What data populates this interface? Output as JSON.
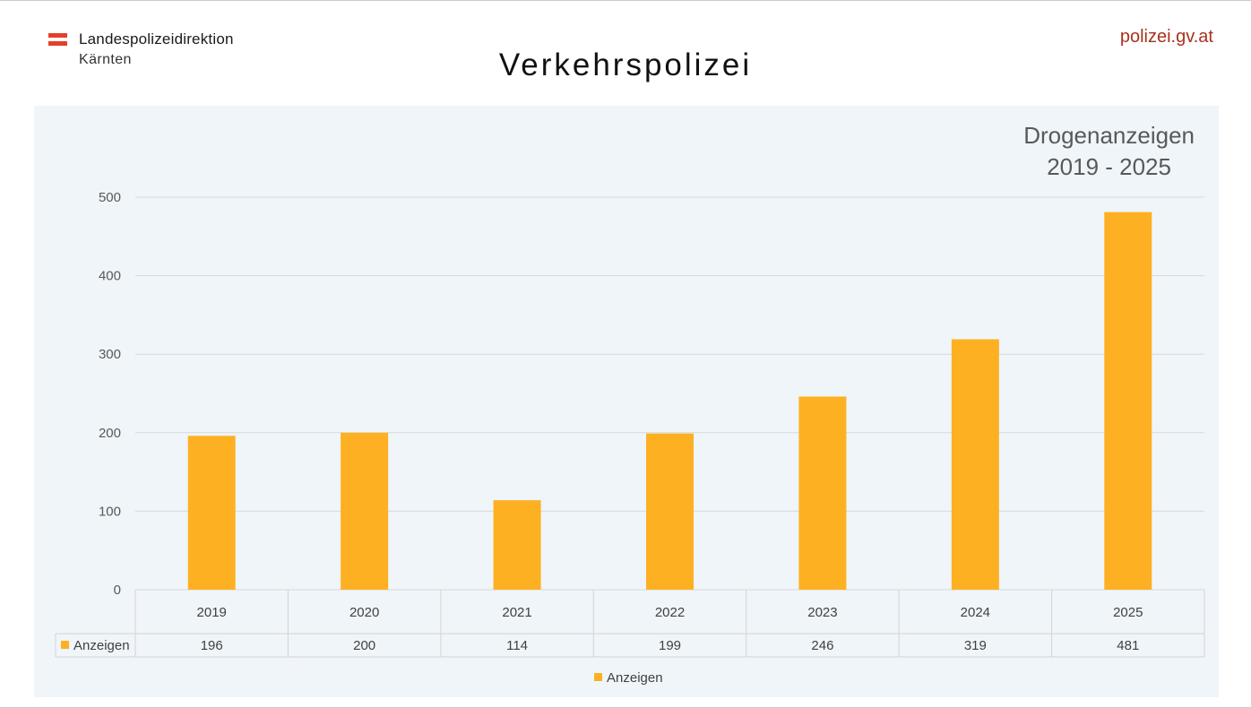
{
  "header": {
    "org_line1": "Landespolizeidirektion",
    "org_line2": "Kärnten",
    "site": "polizei.gv.at",
    "page_title": "Verkehrspolizei"
  },
  "colors": {
    "bar": "#fdb022",
    "panel": "#eff5f9",
    "site_link": "#a8321e",
    "flag_red": "#e2402c"
  },
  "chart_data": {
    "type": "bar",
    "title_line1": "Drogenanzeigen",
    "title_line2": "2019 - 2025",
    "categories": [
      "2019",
      "2020",
      "2021",
      "2022",
      "2023",
      "2024",
      "2025"
    ],
    "series": [
      {
        "name": "Anzeigen",
        "values": [
          196,
          200,
          114,
          199,
          246,
          319,
          481
        ]
      }
    ],
    "ylim": [
      0,
      500
    ],
    "yticks": [
      0,
      100,
      200,
      300,
      400,
      500
    ],
    "grid": true,
    "data_table": true,
    "legend_position": "bottom"
  }
}
